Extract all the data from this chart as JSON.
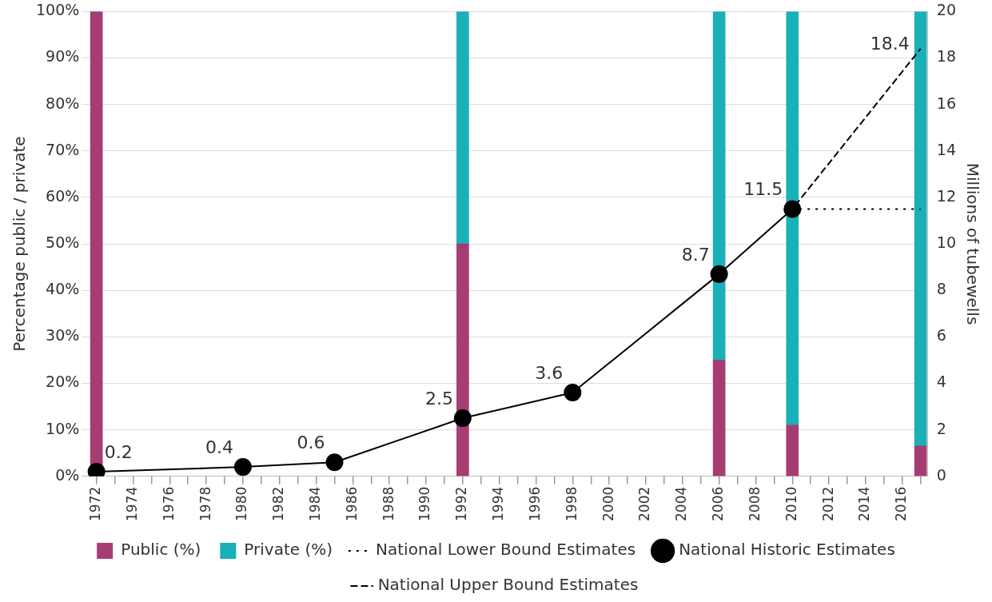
{
  "chart_data": {
    "type": "bar",
    "stacked": true,
    "ylabel": "Percentage public / private",
    "y2label": "Millions of tubewells",
    "xlim": [
      1971.2,
      2017.4
    ],
    "xticks": [
      1972,
      {
        "value": 1973,
        "label": null
      },
      1974,
      {
        "value": 1975,
        "label": null
      },
      1976,
      {
        "value": 1977,
        "label": null
      },
      1978,
      {
        "value": 1979,
        "label": null
      },
      1980,
      {
        "value": 1981,
        "label": null
      },
      1982,
      {
        "value": 1983,
        "label": null
      },
      1984,
      {
        "value": 1985,
        "label": null
      },
      1986,
      {
        "value": 1987,
        "label": null
      },
      1988,
      {
        "value": 1989,
        "label": null
      },
      1990,
      {
        "value": 1991,
        "label": null
      },
      1992,
      {
        "value": 1993,
        "label": null
      },
      1994,
      {
        "value": 1995,
        "label": null
      },
      1996,
      {
        "value": 1997,
        "label": null
      },
      1998,
      {
        "value": 1999,
        "label": null
      },
      2000,
      {
        "value": 2001,
        "label": null
      },
      2002,
      {
        "value": 2003,
        "label": null
      },
      2004,
      {
        "value": 2005,
        "label": null
      },
      2006,
      {
        "value": 2007,
        "label": null
      },
      2008,
      {
        "value": 2009,
        "label": null
      },
      2010,
      {
        "value": 2011,
        "label": null
      },
      2012,
      {
        "value": 2013,
        "label": null
      },
      2014,
      {
        "value": 2015,
        "label": null
      },
      2016,
      {
        "value": 2017,
        "label": null
      }
    ],
    "ylim": [
      0,
      100
    ],
    "yticks": [
      {
        "value": 0,
        "label": "0%"
      },
      {
        "value": 10,
        "label": "10%"
      },
      {
        "value": 20,
        "label": "20%"
      },
      {
        "value": 30,
        "label": "30%"
      },
      {
        "value": 40,
        "label": "40%"
      },
      {
        "value": 50,
        "label": "50%"
      },
      {
        "value": 60,
        "label": "60%"
      },
      {
        "value": 70,
        "label": "70%"
      },
      {
        "value": 80,
        "label": "80%"
      },
      {
        "value": 90,
        "label": "90%"
      },
      {
        "value": 100,
        "label": "100%"
      }
    ],
    "y2lim": [
      0,
      20
    ],
    "y2ticks": [
      0,
      2,
      4,
      6,
      8,
      10,
      12,
      14,
      16,
      18,
      20
    ],
    "grid": "y",
    "legend": "bottom",
    "series": [
      {
        "name": "Public (%)",
        "color": "#a63d72",
        "x": [
          1972,
          1992,
          2006,
          2010,
          2017
        ],
        "values": [
          100,
          50,
          25,
          11,
          6.5
        ]
      },
      {
        "name": "Private (%)",
        "color": "#1ab0b8",
        "x": [
          1972,
          1992,
          2006,
          2010,
          2017
        ],
        "values": [
          0,
          50,
          75,
          89,
          93.5
        ]
      },
      {
        "name": "National Lower Bound Estimates",
        "type": "line",
        "axis": "y2",
        "color": "#000000",
        "line_style": "dotted",
        "x": [
          2010,
          2017
        ],
        "values": [
          11.5,
          11.5
        ]
      },
      {
        "name": "National Historic Estimates",
        "type": "line",
        "axis": "y2",
        "color": "#000000",
        "line_style": "solid",
        "marker": "circle",
        "x": [
          1972,
          1980,
          1985,
          1992,
          1998,
          2006,
          2010
        ],
        "values": [
          0.2,
          0.4,
          0.6,
          2.5,
          3.6,
          8.7,
          11.5
        ],
        "value_labels": [
          "0.2",
          "0.4",
          "0.6",
          "2.5",
          "3.6",
          "8.7",
          "11.5"
        ]
      },
      {
        "name": "National Upper Bound Estimates",
        "type": "line",
        "axis": "y2",
        "color": "#000000",
        "line_style": "dashed",
        "marker": "none",
        "x": [
          2010,
          2017
        ],
        "values": [
          11.5,
          18.4
        ],
        "value_labels": [
          null,
          "18.4"
        ]
      }
    ]
  }
}
